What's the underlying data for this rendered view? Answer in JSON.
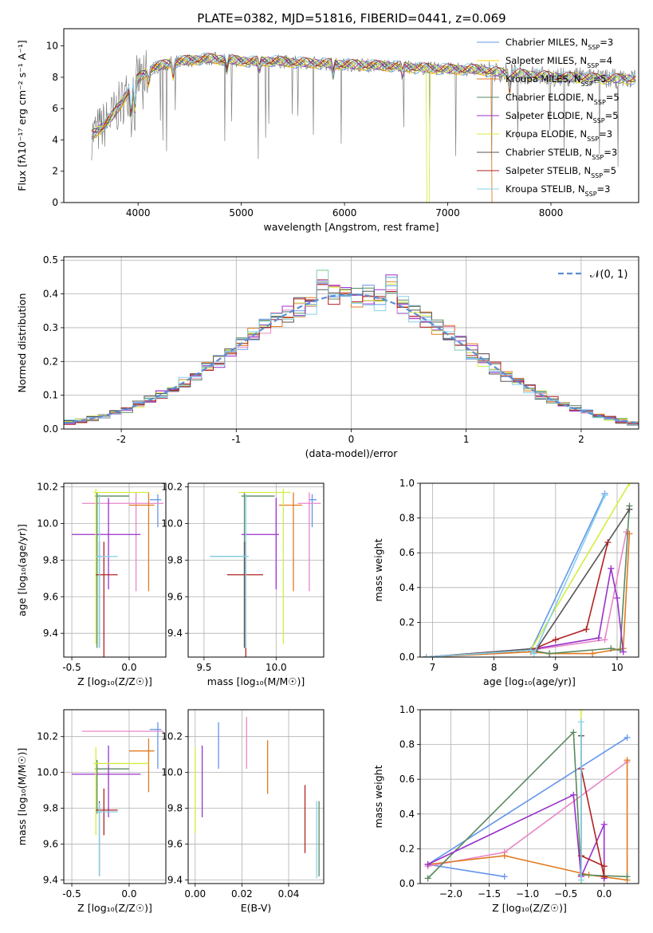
{
  "figure": {
    "title": "PLATE=0382, MJD=51816, FIBERID=0441, z=0.069"
  },
  "colors": {
    "Chabrier MILES": "#6495ed",
    "Salpeter MILES": "#ffd700",
    "Kroupa MILES": "#e07b20",
    "Chabrier ELODIE": "#5a8a60",
    "Salpeter ELODIE": "#9932cc",
    "Kroupa ELODIE": "#d4ee40",
    "Chabrier STELIB": "#555555",
    "Salpeter STELIB": "#b22222",
    "Kroupa STELIB": "#87d0e8",
    "data": "#808080",
    "gauss": "#5b8ed6",
    "Salpeter MILES b": "#e886c8"
  },
  "chart_data": [
    {
      "id": "spectrum",
      "type": "line",
      "xlabel": "wavelength [Angstrom, rest frame]",
      "ylabel": "Flux [fλ10⁻¹⁷ erg cm⁻² s⁻¹ A⁻¹]",
      "xlim": [
        3280,
        8850
      ],
      "ylim": [
        0,
        11.1
      ],
      "xticks": [
        4000,
        5000,
        6000,
        7000,
        8000
      ],
      "yticks": [
        0,
        2,
        4,
        6,
        8,
        10
      ],
      "grid": false,
      "legend_position": "right",
      "continuum": {
        "x": [
          3550,
          3650,
          3750,
          3850,
          3950,
          4050,
          4150,
          4300,
          4500,
          4700,
          4900,
          5100,
          5300,
          5500,
          5700,
          5900,
          6100,
          6300,
          6500,
          6700,
          6900,
          7100,
          7300,
          7500,
          7700,
          7900,
          8100,
          8300,
          8500,
          8700
        ],
        "y": [
          4.3,
          4.8,
          5.5,
          6.5,
          7.6,
          8.2,
          8.6,
          8.9,
          9.1,
          9.2,
          9.1,
          9.0,
          9.05,
          8.95,
          8.9,
          8.85,
          8.8,
          8.75,
          8.7,
          8.6,
          8.55,
          8.5,
          8.5,
          8.3,
          8.2,
          8.1,
          8.0,
          8.0,
          7.9,
          7.9
        ]
      },
      "series": [
        {
          "name": "Chabrier MILES, N_SSP=3",
          "color_key": "Chabrier MILES"
        },
        {
          "name": "Salpeter MILES, N_SSP=4",
          "color_key": "Salpeter MILES"
        },
        {
          "name": "Kroupa MILES, N_SSP=5",
          "color_key": "Kroupa MILES"
        },
        {
          "name": "Chabrier ELODIE, N_SSP=5",
          "color_key": "Chabrier ELODIE"
        },
        {
          "name": "Salpeter ELODIE, N_SSP=5",
          "color_key": "Salpeter ELODIE"
        },
        {
          "name": "Kroupa ELODIE, N_SSP=3",
          "color_key": "Kroupa ELODIE"
        },
        {
          "name": "Chabrier STELIB, N_SSP=3",
          "color_key": "Chabrier STELIB"
        },
        {
          "name": "Salpeter STELIB, N_SSP=5",
          "color_key": "Salpeter STELIB"
        },
        {
          "name": "Kroupa STELIB, N_SSP=3",
          "color_key": "Kroupa STELIB"
        }
      ]
    },
    {
      "id": "residuals",
      "type": "histogram",
      "xlabel": "(data-model)/error",
      "ylabel": "Normed distribution",
      "xlim": [
        -2.5,
        2.5
      ],
      "ylim": [
        0,
        0.51
      ],
      "xticks": [
        -2,
        -1,
        0,
        1,
        2
      ],
      "yticks": [
        0.0,
        0.1,
        0.2,
        0.3,
        0.4,
        0.5
      ],
      "grid": true,
      "legend": "𝒩(0, 1)",
      "legend_position": "top-right",
      "bin_width": 0.1
    },
    {
      "id": "age_vs_Z",
      "type": "errorbar",
      "xlabel": "Z [log₁₀(Z/Z☉)]",
      "ylabel": "age  [log₁₀(age/yr)]",
      "xlim": [
        -0.57,
        0.32
      ],
      "ylim": [
        9.27,
        10.22
      ],
      "xticks": [
        -0.5,
        0.0
      ],
      "yticks": [
        9.4,
        9.6,
        9.8,
        10.0,
        10.2
      ],
      "grid": true,
      "points": [
        {
          "c": "Chabrier MILES",
          "x": 0.25,
          "y": 10.13,
          "xerr": [
            0.07,
            0.03
          ],
          "yerr": [
            0.15,
            0.03
          ]
        },
        {
          "c": "Salpeter MILES b",
          "x": 0.06,
          "y": 10.11,
          "xerr": [
            0.47,
            0.24
          ],
          "yerr": [
            0.48,
            0.06
          ]
        },
        {
          "c": "Kroupa MILES",
          "x": 0.17,
          "y": 10.1,
          "xerr": [
            0.17,
            0.05
          ],
          "yerr": [
            0.47,
            0.07
          ]
        },
        {
          "c": "Chabrier ELODIE",
          "x": -0.28,
          "y": 10.15,
          "xerr": [
            0.02,
            0.28
          ],
          "yerr": [
            0.83,
            0.02
          ]
        },
        {
          "c": "Salpeter ELODIE",
          "x": -0.18,
          "y": 9.94,
          "xerr": [
            0.32,
            0.28
          ],
          "yerr": [
            0.3,
            0.2
          ]
        },
        {
          "c": "Kroupa ELODIE",
          "x": -0.29,
          "y": 10.17,
          "xerr": [
            0.02,
            0.46
          ],
          "yerr": [
            0.83,
            0.02
          ]
        },
        {
          "c": "Chabrier STELIB",
          "x": -0.26,
          "y": 9.82,
          "xerr": [
            0.02,
            0.02
          ],
          "yerr": [
            0.5,
            0.08
          ]
        },
        {
          "c": "Salpeter STELIB",
          "x": -0.22,
          "y": 9.72,
          "xerr": [
            0.07,
            0.12
          ],
          "yerr": [
            0.46,
            0.18
          ]
        },
        {
          "c": "Kroupa STELIB",
          "x": -0.26,
          "y": 9.82,
          "xerr": [
            0.03,
            0.16
          ],
          "yerr": [
            0.5,
            0.34
          ]
        }
      ]
    },
    {
      "id": "age_vs_mass",
      "type": "errorbar",
      "xlabel": "mass [log₁₀(M/M☉)]",
      "ylabel": "",
      "xlim": [
        9.39,
        10.33
      ],
      "ylim": [
        9.27,
        10.22
      ],
      "xticks": [
        9.5,
        10.0
      ],
      "yticks": [
        9.4,
        9.6,
        9.8,
        10.0,
        10.2
      ],
      "grid": true,
      "points": [
        {
          "c": "Chabrier MILES",
          "x": 10.25,
          "y": 10.13,
          "xerr": [
            0.02,
            0.03
          ],
          "yerr": [
            0.15,
            0.03
          ]
        },
        {
          "c": "Salpeter MILES b",
          "x": 10.23,
          "y": 10.11,
          "xerr": [
            0.08,
            0.08
          ],
          "yerr": [
            0.48,
            0.06
          ]
        },
        {
          "c": "Kroupa MILES",
          "x": 10.12,
          "y": 10.1,
          "xerr": [
            0.1,
            0.06
          ],
          "yerr": [
            0.47,
            0.07
          ]
        },
        {
          "c": "Chabrier ELODIE",
          "x": 9.78,
          "y": 10.15,
          "xerr": [
            0.02,
            0.21
          ],
          "yerr": [
            0.83,
            0.02
          ]
        },
        {
          "c": "Salpeter ELODIE",
          "x": 10.0,
          "y": 9.94,
          "xerr": [
            0.24,
            0.02
          ],
          "yerr": [
            0.3,
            0.2
          ]
        },
        {
          "c": "Kroupa ELODIE",
          "x": 10.05,
          "y": 10.17,
          "xerr": [
            0.31,
            0.05
          ],
          "yerr": [
            0.83,
            0.02
          ]
        },
        {
          "c": "Chabrier STELIB",
          "x": 9.78,
          "y": 9.82,
          "xerr": [
            0.23,
            0.02
          ],
          "yerr": [
            0.5,
            0.08
          ]
        },
        {
          "c": "Salpeter STELIB",
          "x": 9.79,
          "y": 9.72,
          "xerr": [
            0.13,
            0.12
          ],
          "yerr": [
            0.46,
            0.18
          ]
        },
        {
          "c": "Kroupa STELIB",
          "x": 9.79,
          "y": 9.82,
          "xerr": [
            0.25,
            0.02
          ],
          "yerr": [
            0.5,
            0.34
          ]
        }
      ]
    },
    {
      "id": "weight_vs_age",
      "type": "line",
      "xlabel": "age  [log₁₀(age/yr)]",
      "ylabel": "mass weight",
      "xlim": [
        6.8,
        10.35
      ],
      "ylim": [
        0,
        1.0
      ],
      "xticks": [
        7,
        8,
        9,
        10
      ],
      "yticks": [
        0.0,
        0.2,
        0.4,
        0.6,
        0.8,
        1.0
      ],
      "grid": true,
      "series": [
        {
          "c": "Chabrier MILES",
          "x": [
            6.9,
            8.6,
            9.8
          ],
          "y": [
            0.0,
            0.04,
            0.94
          ]
        },
        {
          "c": "Salpeter MILES b",
          "x": [
            6.9,
            8.6,
            9.8,
            10.15
          ],
          "y": [
            0.0,
            0.04,
            0.1,
            0.72
          ]
        },
        {
          "c": "Kroupa MILES",
          "x": [
            6.9,
            8.6,
            8.9,
            9.6,
            10.1,
            10.2
          ],
          "y": [
            0.0,
            0.03,
            0.02,
            0.02,
            0.05,
            0.71
          ]
        },
        {
          "c": "Chabrier ELODIE",
          "x": [
            6.9,
            8.6,
            8.9,
            9.9,
            10.05,
            10.2
          ],
          "y": [
            0.0,
            0.04,
            0.02,
            0.05,
            0.04,
            0.87
          ]
        },
        {
          "c": "Salpeter ELODIE",
          "x": [
            6.9,
            8.7,
            9.7,
            9.9,
            10.0,
            10.1
          ],
          "y": [
            0.0,
            0.05,
            0.11,
            0.51,
            0.34,
            0.03
          ]
        },
        {
          "c": "Kroupa ELODIE",
          "x": [
            6.9,
            8.6,
            10.2
          ],
          "y": [
            0.0,
            0.04,
            1.0
          ]
        },
        {
          "c": "Chabrier STELIB",
          "x": [
            6.9,
            8.7,
            10.2
          ],
          "y": [
            0.0,
            0.05,
            0.85
          ]
        },
        {
          "c": "Salpeter STELIB",
          "x": [
            6.9,
            8.6,
            9.0,
            9.5,
            9.85
          ],
          "y": [
            0.0,
            0.04,
            0.1,
            0.16,
            0.66
          ]
        },
        {
          "c": "Kroupa STELIB",
          "x": [
            6.9,
            8.6,
            8.65,
            9.8
          ],
          "y": [
            0.0,
            0.04,
            0.02,
            0.93
          ]
        }
      ]
    },
    {
      "id": "mass_vs_Z",
      "type": "errorbar",
      "xlabel": "Z [log₁₀(Z/Z☉)]",
      "ylabel": "mass [log₁₀(M/M☉)]",
      "xlim": [
        -0.57,
        0.32
      ],
      "ylim": [
        9.38,
        10.35
      ],
      "xticks": [
        -0.5,
        0.0
      ],
      "yticks": [
        9.4,
        9.6,
        9.8,
        10.0,
        10.2
      ],
      "grid": true,
      "points": [
        {
          "c": "Chabrier MILES",
          "x": 0.25,
          "y": 10.24,
          "xerr": [
            0.07,
            0.03
          ],
          "yerr": [
            0.22,
            0.04
          ]
        },
        {
          "c": "Salpeter MILES b",
          "x": 0.06,
          "y": 10.23,
          "xerr": [
            0.47,
            0.24
          ],
          "yerr": [
            0.0,
            0.0
          ]
        },
        {
          "c": "Kroupa MILES",
          "x": 0.17,
          "y": 10.12,
          "xerr": [
            0.17,
            0.05
          ],
          "yerr": [
            0.23,
            0.07
          ]
        },
        {
          "c": "Chabrier ELODIE",
          "x": -0.28,
          "y": 10.02,
          "xerr": [
            0.02,
            0.28
          ],
          "yerr": [
            0.25,
            0.05
          ]
        },
        {
          "c": "Salpeter ELODIE",
          "x": -0.18,
          "y": 9.99,
          "xerr": [
            0.32,
            0.28
          ],
          "yerr": [
            0.24,
            0.16
          ]
        },
        {
          "c": "Kroupa ELODIE",
          "x": -0.29,
          "y": 10.05,
          "xerr": [
            0.02,
            0.46
          ],
          "yerr": [
            0.4,
            0.09
          ]
        },
        {
          "c": "Chabrier STELIB",
          "x": -0.26,
          "y": 9.78,
          "xerr": [
            0.02,
            0.02
          ],
          "yerr": [
            0.36,
            0.06
          ]
        },
        {
          "c": "Salpeter STELIB",
          "x": -0.22,
          "y": 9.79,
          "xerr": [
            0.07,
            0.12
          ],
          "yerr": [
            0.14,
            0.12
          ]
        },
        {
          "c": "Kroupa STELIB",
          "x": -0.26,
          "y": 9.78,
          "xerr": [
            0.03,
            0.16
          ],
          "yerr": [
            0.36,
            0.05
          ]
        }
      ]
    },
    {
      "id": "mass_vs_EBV",
      "type": "errorbar",
      "xlabel": "E(B-V)",
      "ylabel": "",
      "xlim": [
        -0.003,
        0.055
      ],
      "ylim": [
        9.38,
        10.35
      ],
      "xticks": [
        0.0,
        0.02,
        0.04
      ],
      "yticks": [
        9.4,
        9.6,
        9.8,
        10.0,
        10.2
      ],
      "grid": true,
      "points": [
        {
          "c": "Kroupa ELODIE",
          "x": 0.0,
          "y": 9.98,
          "xerr": [
            0,
            0
          ],
          "yerr": [
            0.32,
            0.16
          ]
        },
        {
          "c": "Salpeter ELODIE",
          "x": 0.003,
          "y": 9.95,
          "xerr": [
            0,
            0
          ],
          "yerr": [
            0.2,
            0.2
          ]
        },
        {
          "c": "Chabrier MILES",
          "x": 0.01,
          "y": 10.15,
          "xerr": [
            0,
            0
          ],
          "yerr": [
            0.13,
            0.13
          ]
        },
        {
          "c": "Salpeter MILES b",
          "x": 0.022,
          "y": 10.16,
          "xerr": [
            0,
            0
          ],
          "yerr": [
            0.14,
            0.15
          ]
        },
        {
          "c": "Kroupa MILES",
          "x": 0.031,
          "y": 10.03,
          "xerr": [
            0,
            0
          ],
          "yerr": [
            0.15,
            0.15
          ]
        },
        {
          "c": "Salpeter STELIB",
          "x": 0.047,
          "y": 9.74,
          "xerr": [
            0,
            0
          ],
          "yerr": [
            0.19,
            0.19
          ]
        },
        {
          "c": "Kroupa STELIB",
          "x": 0.052,
          "y": 9.63,
          "xerr": [
            0,
            0
          ],
          "yerr": [
            0.22,
            0.21
          ]
        },
        {
          "c": "Chabrier ELODIE",
          "x": 0.053,
          "y": 9.63,
          "xerr": [
            0,
            0
          ],
          "yerr": [
            0.21,
            0.21
          ]
        }
      ]
    },
    {
      "id": "weight_vs_Z",
      "type": "line",
      "xlabel": "Z [log₁₀(Z/Z☉)]",
      "ylabel": "mass weight",
      "xlim": [
        -2.4,
        0.45
      ],
      "ylim": [
        0,
        1.0
      ],
      "xticks": [
        -2.0,
        -1.5,
        -1.0,
        -0.5,
        0.0
      ],
      "yticks": [
        0.0,
        0.2,
        0.4,
        0.6,
        0.8,
        1.0
      ],
      "grid": true,
      "series": [
        {
          "c": "Chabrier MILES",
          "x": [
            -1.3,
            -2.3,
            0.3
          ],
          "y": [
            0.04,
            0.11,
            0.84
          ]
        },
        {
          "c": "Salpeter MILES b",
          "x": [
            -2.3,
            -1.3,
            0.3
          ],
          "y": [
            0.1,
            0.18,
            0.7
          ]
        },
        {
          "c": "Kroupa MILES",
          "x": [
            -2.3,
            -1.3,
            -0.2,
            0.3,
            0.3
          ],
          "y": [
            0.11,
            0.16,
            0.05,
            0.02,
            0.71
          ]
        },
        {
          "c": "Chabrier ELODIE",
          "x": [
            -2.3,
            -0.4,
            -0.3,
            0.3
          ],
          "y": [
            0.03,
            0.87,
            0.05,
            0.04
          ]
        },
        {
          "c": "Salpeter ELODIE",
          "x": [
            -2.3,
            -0.4,
            -0.3,
            0.0,
            0.0
          ],
          "y": [
            0.11,
            0.51,
            0.04,
            0.34,
            0.03
          ]
        },
        {
          "c": "Kroupa ELODIE",
          "x": [
            -0.3,
            -0.3
          ],
          "y": [
            0.0,
            1.0
          ]
        },
        {
          "c": "Chabrier STELIB",
          "x": [
            -0.3,
            -0.3
          ],
          "y": [
            0.05,
            0.85
          ]
        },
        {
          "c": "Salpeter STELIB",
          "x": [
            -0.3,
            0.0,
            0.0,
            -0.3
          ],
          "y": [
            0.16,
            0.1,
            0.04,
            0.66
          ]
        },
        {
          "c": "Kroupa STELIB",
          "x": [
            -0.3,
            -0.3
          ],
          "y": [
            0.02,
            0.93
          ]
        }
      ]
    }
  ]
}
